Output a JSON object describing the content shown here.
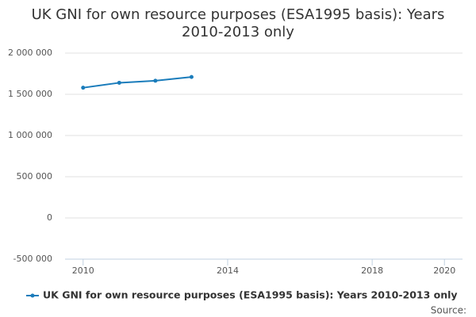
{
  "chart_data": {
    "type": "line",
    "title": "UK GNI for own resource purposes (ESA1995 basis): Years 2010-2013 only",
    "x": [
      2010,
      2011,
      2012,
      2013
    ],
    "series": [
      {
        "name": "UK GNI for own resource purposes (ESA1995 basis): Years 2010-2013 only",
        "color": "#1a7cbb",
        "values": [
          1580000,
          1640000,
          1665000,
          1710000
        ]
      }
    ],
    "xlim": [
      2009.5,
      2020.5
    ],
    "xticks": [
      2010,
      2014,
      2018,
      2020
    ],
    "ylim": [
      -500000,
      2000000
    ],
    "yticks": [
      {
        "value": -500000,
        "label": "-500 000"
      },
      0,
      {
        "value": 500000,
        "label": "500 000"
      },
      {
        "value": 1000000,
        "label": "1 000 000"
      },
      {
        "value": 1500000,
        "label": "1 500 000"
      },
      {
        "value": 2000000,
        "label": "2 000 000"
      }
    ],
    "grid": true,
    "legend": "bottom",
    "source": "Source:"
  }
}
